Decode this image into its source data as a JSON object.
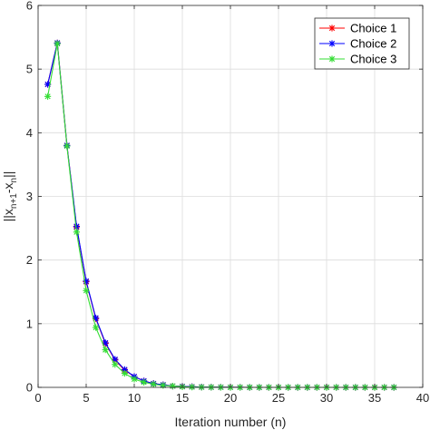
{
  "chart_data": {
    "type": "line",
    "xlabel": "Iteration number (n)",
    "ylabel_parts": [
      "||x",
      "n+1",
      "-x",
      "n",
      "||"
    ],
    "xlim": [
      0,
      40
    ],
    "ylim": [
      0,
      6
    ],
    "xticks": [
      0,
      5,
      10,
      15,
      20,
      25,
      30,
      35,
      40
    ],
    "yticks": [
      0,
      1,
      2,
      3,
      4,
      5,
      6
    ],
    "grid": true,
    "legend_position": "top-right",
    "x": [
      1,
      2,
      3,
      4,
      5,
      6,
      7,
      8,
      9,
      10,
      11,
      12,
      13,
      14,
      15,
      16,
      17,
      18,
      19,
      20,
      21,
      22,
      23,
      24,
      25,
      26,
      27,
      28,
      29,
      30,
      31,
      32,
      33,
      34,
      35,
      36,
      37
    ],
    "series": [
      {
        "name": "Choice 1",
        "color": "#ff0000",
        "values": [
          4.76,
          5.41,
          3.8,
          2.52,
          1.66,
          1.08,
          0.69,
          0.43,
          0.27,
          0.17,
          0.1,
          0.06,
          0.04,
          0.02,
          0.015,
          0.01,
          0.005,
          0.003,
          0.002,
          0.001,
          0.001,
          0,
          0,
          0,
          0,
          0,
          0,
          0,
          0,
          0,
          0,
          0,
          0,
          0,
          0,
          0,
          0
        ]
      },
      {
        "name": "Choice 2",
        "color": "#0000ff",
        "values": [
          4.76,
          5.41,
          3.8,
          2.53,
          1.67,
          1.09,
          0.7,
          0.44,
          0.28,
          0.17,
          0.1,
          0.06,
          0.04,
          0.02,
          0.015,
          0.01,
          0.005,
          0.003,
          0.002,
          0.001,
          0.001,
          0,
          0,
          0,
          0,
          0,
          0,
          0,
          0,
          0,
          0,
          0,
          0,
          0,
          0,
          0,
          0
        ]
      },
      {
        "name": "Choice 3",
        "color": "#33dd33",
        "values": [
          4.57,
          5.4,
          3.79,
          2.44,
          1.52,
          0.94,
          0.59,
          0.36,
          0.22,
          0.13,
          0.08,
          0.05,
          0.03,
          0.02,
          0.01,
          0.005,
          0.003,
          0.002,
          0.001,
          0,
          0,
          0,
          0,
          0,
          0,
          0,
          0,
          0,
          0,
          0,
          0,
          0,
          0,
          0,
          0,
          0,
          0
        ]
      }
    ]
  }
}
